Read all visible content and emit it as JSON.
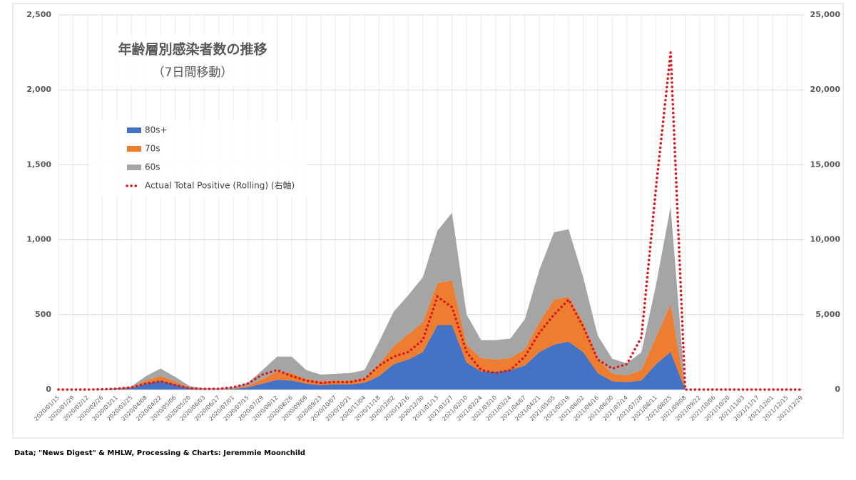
{
  "chart_data": {
    "type": "area",
    "title": "年齢層別感染者数の推移",
    "subtitle": "（7日間移動）",
    "categories": [
      "2020/01/15",
      "2020/01/29",
      "2020/02/12",
      "2020/02/26",
      "2020/03/11",
      "2020/03/25",
      "2020/04/08",
      "2020/04/22",
      "2020/05/06",
      "2020/05/20",
      "2020/06/03",
      "2020/06/17",
      "2020/07/01",
      "2020/07/15",
      "2020/07/29",
      "2020/08/12",
      "2020/08/26",
      "2020/09/09",
      "2020/09/23",
      "2020/10/07",
      "2020/10/21",
      "2020/11/04",
      "2020/11/18",
      "2020/12/02",
      "2020/12/16",
      "2020/12/30",
      "2021/01/13",
      "2021/01/27",
      "2021/02/10",
      "2021/02/24",
      "2021/03/10",
      "2021/03/24",
      "2021/04/07",
      "2021/04/21",
      "2021/05/05",
      "2021/05/19",
      "2021/06/02",
      "2021/06/16",
      "2021/06/30",
      "2021/07/14",
      "2021/07/28",
      "2021/08/11",
      "2021/08/25",
      "2021/09/08",
      "2021/09/22",
      "2021/10/06",
      "2021/10/20",
      "2021/11/03",
      "2021/11/17",
      "2021/12/01",
      "2021/12/15",
      "2021/12/29"
    ],
    "series": [
      {
        "name": "80s+",
        "color": "#4472c4",
        "values": [
          0,
          0,
          0,
          2,
          5,
          10,
          40,
          60,
          35,
          10,
          3,
          3,
          5,
          15,
          40,
          65,
          60,
          40,
          30,
          35,
          35,
          45,
          90,
          170,
          200,
          250,
          430,
          430,
          180,
          120,
          120,
          130,
          160,
          250,
          300,
          320,
          250,
          110,
          55,
          50,
          60,
          170,
          250,
          0,
          0,
          0,
          0,
          0,
          0,
          0,
          0,
          0
        ]
      },
      {
        "name": "70s",
        "color": "#ed7d31",
        "values": [
          0,
          0,
          0,
          1,
          3,
          5,
          20,
          30,
          20,
          5,
          2,
          2,
          3,
          10,
          30,
          55,
          50,
          30,
          25,
          25,
          25,
          30,
          80,
          120,
          170,
          200,
          280,
          300,
          120,
          90,
          80,
          80,
          110,
          200,
          300,
          300,
          200,
          100,
          50,
          45,
          70,
          180,
          320,
          0,
          0,
          0,
          0,
          0,
          0,
          0,
          0,
          0
        ]
      },
      {
        "name": "60s",
        "color": "#a5a5a5",
        "values": [
          0,
          0,
          0,
          1,
          2,
          5,
          30,
          50,
          30,
          8,
          3,
          4,
          8,
          20,
          60,
          100,
          110,
          60,
          45,
          45,
          50,
          55,
          150,
          230,
          260,
          300,
          350,
          450,
          200,
          120,
          130,
          130,
          200,
          350,
          450,
          450,
          300,
          150,
          100,
          80,
          120,
          350,
          650,
          0,
          0,
          0,
          0,
          0,
          0,
          0,
          0,
          0
        ]
      },
      {
        "name": "Actual Total Positive (Rolling) (右軸)",
        "color": "#d7191c",
        "type": "line",
        "axis": "y2",
        "values": [
          0,
          0,
          0,
          20,
          50,
          150,
          400,
          550,
          300,
          80,
          40,
          50,
          150,
          400,
          1000,
          1300,
          900,
          600,
          450,
          500,
          500,
          700,
          1600,
          2200,
          2500,
          3300,
          6200,
          5500,
          2500,
          1300,
          1100,
          1300,
          2200,
          3800,
          5000,
          6000,
          4200,
          2000,
          1400,
          1700,
          3500,
          13500,
          22500,
          0,
          0,
          0,
          0,
          0,
          0,
          0,
          0,
          0
        ]
      }
    ],
    "ylim": [
      0,
      2500
    ],
    "yticks": [
      0,
      500,
      {
        "value": 1000,
        "label": "1,000"
      },
      {
        "value": 1500,
        "label": "1,500"
      },
      {
        "value": 2000,
        "label": "2,000"
      },
      {
        "value": 2500,
        "label": "2,500"
      }
    ],
    "y2lim": [
      0,
      25000
    ],
    "y2ticks": [
      0,
      {
        "value": 5000,
        "label": "5,000"
      },
      {
        "value": 10000,
        "label": "10,000"
      },
      {
        "value": 15000,
        "label": "15,000"
      },
      {
        "value": 20000,
        "label": "20,000"
      },
      {
        "value": 25000,
        "label": "25,000"
      }
    ],
    "grid": true,
    "source": "Data; \"News Digest\" & MHLW, Processing & Charts: Jeremmie Moonchild"
  }
}
